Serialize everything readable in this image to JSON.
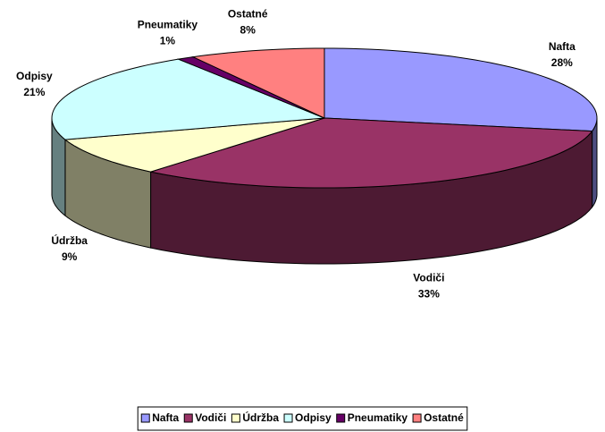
{
  "chart_data": {
    "type": "pie",
    "categories": [
      "Nafta",
      "Vodiči",
      "Údržba",
      "Odpisy",
      "Pneumatiky",
      "Ostatné"
    ],
    "values": [
      28,
      33,
      9,
      21,
      1,
      8
    ],
    "value_labels": [
      "28%",
      "33%",
      "9%",
      "21%",
      "1%",
      "8%"
    ],
    "colors": [
      "#9999ff",
      "#993366",
      "#ffffcc",
      "#ccffff",
      "#660066",
      "#ff8080"
    ],
    "legend": "bottom"
  }
}
